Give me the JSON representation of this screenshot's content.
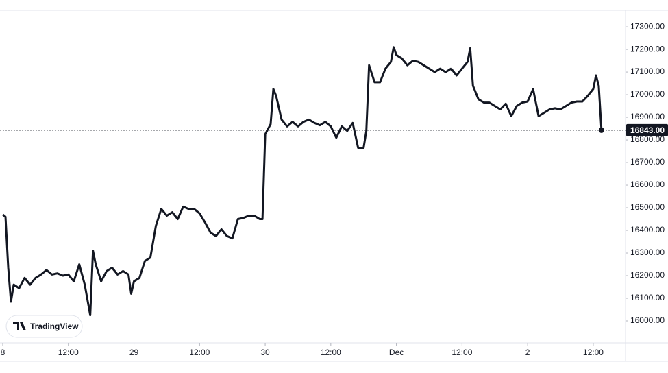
{
  "chart_data": {
    "type": "line",
    "color": "#131722",
    "x": [
      0,
      0.5,
      1,
      1.5,
      2,
      3,
      4,
      5,
      6,
      7,
      8,
      9,
      10,
      11,
      12,
      13,
      14,
      15,
      16,
      16.5,
      17,
      18,
      19,
      20,
      21,
      22,
      23,
      23.5,
      24,
      25,
      26,
      27,
      28,
      29,
      30,
      31,
      32,
      33,
      34,
      35,
      36,
      37,
      38,
      39,
      40,
      41,
      42,
      43,
      44,
      45,
      46,
      47,
      47.5,
      48,
      49,
      49.5,
      50,
      51,
      52,
      53,
      54,
      55,
      56,
      57,
      58,
      59,
      60,
      61,
      62,
      63,
      64,
      65,
      66,
      66.5,
      67,
      68,
      69,
      70,
      71,
      71.5,
      72,
      73,
      74,
      75,
      76,
      77,
      78,
      79,
      80,
      81,
      82,
      83,
      84,
      85,
      85.5,
      86,
      87,
      88,
      89,
      90,
      91,
      92,
      93,
      94,
      95,
      96,
      97,
      98,
      99,
      100,
      101,
      102,
      103,
      104,
      105,
      106,
      107,
      108,
      108.5,
      109,
      109.5
    ],
    "values": [
      16470,
      16460,
      16235,
      16085,
      16160,
      16145,
      16190,
      16160,
      16190,
      16205,
      16225,
      16205,
      16210,
      16200,
      16205,
      16175,
      16250,
      16160,
      16025,
      16310,
      16250,
      16175,
      16220,
      16235,
      16205,
      16220,
      16205,
      16120,
      16175,
      16190,
      16265,
      16280,
      16420,
      16495,
      16465,
      16480,
      16450,
      16505,
      16495,
      16495,
      16475,
      16435,
      16390,
      16375,
      16405,
      16375,
      16365,
      16450,
      16455,
      16465,
      16465,
      16450,
      16450,
      16825,
      16870,
      17025,
      16995,
      16890,
      16860,
      16880,
      16860,
      16880,
      16890,
      16875,
      16865,
      16880,
      16860,
      16810,
      16860,
      16840,
      16875,
      16765,
      16765,
      16840,
      17130,
      17055,
      17055,
      17115,
      17145,
      17210,
      17175,
      17160,
      17130,
      17150,
      17145,
      17130,
      17115,
      17100,
      17115,
      17100,
      17115,
      17085,
      17115,
      17145,
      17205,
      17040,
      16980,
      16965,
      16965,
      16950,
      16935,
      16960,
      16905,
      16950,
      16965,
      16970,
      17025,
      16905,
      16920,
      16935,
      16940,
      16935,
      16950,
      16965,
      16970,
      16970,
      16995,
      17025,
      17085,
      17040,
      16843
    ],
    "xlim": [
      -0.5,
      113.9
    ],
    "ylim": [
      15903,
      17373
    ],
    "xticks": [
      {
        "value": 0,
        "label": "8"
      },
      {
        "value": 12,
        "label": "12:00"
      },
      {
        "value": 24,
        "label": "29"
      },
      {
        "value": 36,
        "label": "12:00"
      },
      {
        "value": 48,
        "label": "30"
      },
      {
        "value": 60,
        "label": "12:00"
      },
      {
        "value": 72,
        "label": "Dec"
      },
      {
        "value": 84,
        "label": "12:00"
      },
      {
        "value": 96,
        "label": "2"
      },
      {
        "value": 108,
        "label": "12:00"
      }
    ],
    "yticks": [
      {
        "value": 16000,
        "label": "16000.00"
      },
      {
        "value": 16100,
        "label": "16100.00"
      },
      {
        "value": 16200,
        "label": "16200.00"
      },
      {
        "value": 16300,
        "label": "16300.00"
      },
      {
        "value": 16400,
        "label": "16400.00"
      },
      {
        "value": 16500,
        "label": "16500.00"
      },
      {
        "value": 16600,
        "label": "16600.00"
      },
      {
        "value": 16700,
        "label": "16700.00"
      },
      {
        "value": 16800,
        "label": "16800.00"
      },
      {
        "value": 16900,
        "label": "16900.00"
      },
      {
        "value": 17000,
        "label": "17000.00"
      },
      {
        "value": 17100,
        "label": "17100.00"
      },
      {
        "value": 17200,
        "label": "17200.00"
      },
      {
        "value": 17300,
        "label": "17300.00"
      }
    ],
    "last_price": {
      "value": 16843,
      "label": "16843.00"
    },
    "watermark": "TradingView"
  }
}
